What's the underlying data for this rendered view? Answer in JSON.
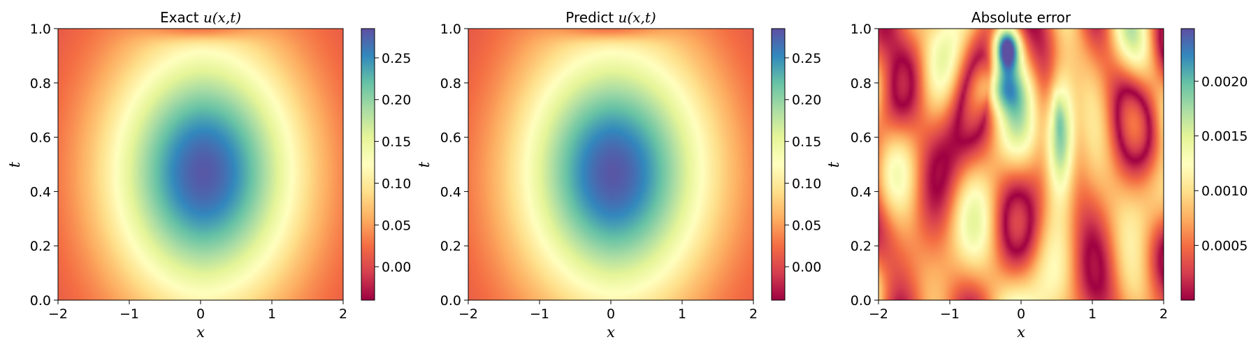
{
  "chart_data": [
    {
      "type": "heatmap",
      "title": "Exact u(x,t)",
      "xlabel": "x",
      "ylabel": "t",
      "xlim": [
        -2,
        2
      ],
      "ylim": [
        0,
        1
      ],
      "xticks": [
        "−2",
        "−1",
        "0",
        "1",
        "2"
      ],
      "yticks": [
        "0.0",
        "0.2",
        "0.4",
        "0.6",
        "0.8",
        "1.0"
      ],
      "colormap": "Spectral",
      "colorbar": {
        "min": -0.04,
        "max": 0.285,
        "ticks": [
          "0.00",
          "0.05",
          "0.10",
          "0.15",
          "0.20",
          "0.25"
        ],
        "tick_values": [
          0.0,
          0.05,
          0.1,
          0.15,
          0.2,
          0.25
        ]
      },
      "field": {
        "peak": 0.28,
        "peak_x": 0.05,
        "peak_t": 0.47,
        "min": -0.04
      }
    },
    {
      "type": "heatmap",
      "title": "Predict u(x,t)",
      "xlabel": "x",
      "ylabel": "t",
      "xlim": [
        -2,
        2
      ],
      "ylim": [
        0,
        1
      ],
      "xticks": [
        "−2",
        "−1",
        "0",
        "1",
        "2"
      ],
      "yticks": [
        "0.0",
        "0.2",
        "0.4",
        "0.6",
        "0.8",
        "1.0"
      ],
      "colormap": "Spectral",
      "colorbar": {
        "min": -0.04,
        "max": 0.285,
        "ticks": [
          "0.00",
          "0.05",
          "0.10",
          "0.15",
          "0.20",
          "0.25"
        ],
        "tick_values": [
          0.0,
          0.05,
          0.1,
          0.15,
          0.2,
          0.25
        ]
      },
      "field": {
        "peak": 0.28,
        "peak_x": 0.05,
        "peak_t": 0.47,
        "min": -0.04
      }
    },
    {
      "type": "heatmap",
      "title": "Absolute error",
      "xlabel": "x",
      "ylabel": "t",
      "xlim": [
        -2,
        2
      ],
      "ylim": [
        0,
        1
      ],
      "xticks": [
        "−2",
        "−1",
        "0",
        "1",
        "2"
      ],
      "yticks": [
        "0.0",
        "0.2",
        "0.4",
        "0.6",
        "0.8",
        "1.0"
      ],
      "colormap": "Spectral",
      "colorbar": {
        "min": 0.0,
        "max": 0.00248,
        "ticks": [
          "0.0005",
          "0.0010",
          "0.0015",
          "0.0020"
        ],
        "tick_values": [
          0.0005,
          0.001,
          0.0015,
          0.002
        ]
      },
      "field": {
        "max": 0.00245,
        "max_x": -0.2,
        "max_t": 0.93
      }
    }
  ]
}
